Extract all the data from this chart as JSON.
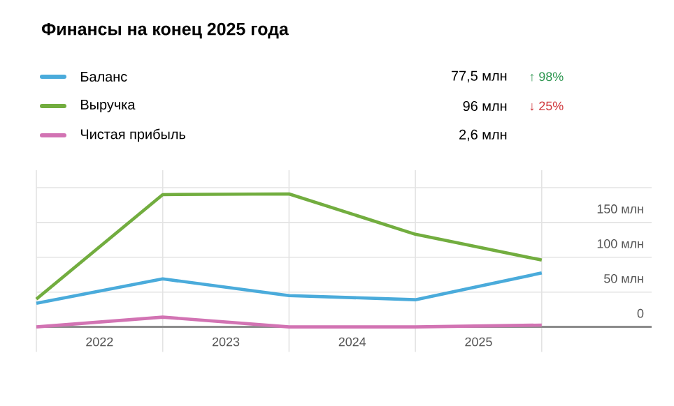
{
  "chart_data": {
    "type": "line",
    "title": "Финансы на конец 2025 года",
    "x": [
      2022,
      2023,
      2024,
      2025,
      2026
    ],
    "series": [
      {
        "name": "Баланс",
        "color": "#4aabdb",
        "values": [
          34,
          69,
          45,
          39,
          77.5
        ]
      },
      {
        "name": "Выручка",
        "color": "#72ad3f",
        "values": [
          40,
          190,
          191,
          133,
          96
        ]
      },
      {
        "name": "Чистая прибыль",
        "color": "#d273b3",
        "values": [
          0,
          14,
          0,
          0,
          2.6
        ]
      }
    ],
    "annotations": [
      "77,5 млн",
      "↑ 98%",
      "96 млн",
      "↓ 25%",
      "2,6 млн"
    ],
    "xlim": [
      2022,
      2026.87
    ],
    "xticks": [
      {
        "value": 2022,
        "label": null
      },
      {
        "value": 2022.5,
        "label": "2022"
      },
      {
        "value": 2023,
        "label": null
      },
      {
        "value": 2023.5,
        "label": "2023"
      },
      {
        "value": 2024,
        "label": null
      },
      {
        "value": 2024.5,
        "label": "2024"
      },
      {
        "value": 2025,
        "label": null
      },
      {
        "value": 2025.5,
        "label": "2025"
      },
      {
        "value": 2026,
        "label": null
      }
    ],
    "ylim": [
      0,
      225
    ],
    "yticks": [
      {
        "value": 0,
        "label": "0"
      },
      {
        "value": 50,
        "label": "50 млн"
      },
      {
        "value": 100,
        "label": "100 млн"
      },
      {
        "value": 150,
        "label": "150 млн"
      },
      {
        "value": 200,
        "label": null
      }
    ],
    "grid": true,
    "legend": "top left",
    "marker": "none",
    "line_style": "solid"
  }
}
